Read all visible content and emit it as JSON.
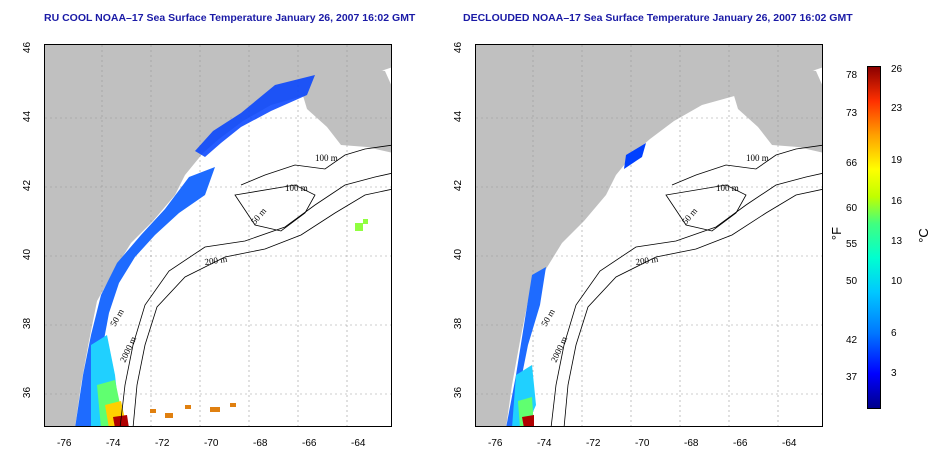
{
  "titles": {
    "left": "RU COOL NOAA–17 Sea Surface Temperature January 26, 2007 16:02 GMT",
    "right": "DECLOUDED NOAA–17 Sea Surface Temperature January 26, 2007 16:02 GMT"
  },
  "axes": {
    "x_ticks": [
      "-76",
      "-74",
      "-72",
      "-70",
      "-68",
      "-66",
      "-64"
    ],
    "y_ticks": [
      "36",
      "38",
      "40",
      "42",
      "44",
      "46"
    ]
  },
  "contour_labels": [
    "100 m",
    "100 m",
    "50 m",
    "200 m",
    "50 m",
    "2000 m"
  ],
  "colorbar": {
    "fahrenheit_ticks": [
      "78",
      "73",
      "66",
      "60",
      "55",
      "50",
      "42",
      "37"
    ],
    "celsius_ticks": [
      "26",
      "23",
      "19",
      "16",
      "13",
      "10",
      "6",
      "3"
    ],
    "fahrenheit_unit": "°F",
    "celsius_unit": "°C"
  },
  "colors": {
    "land": "#c0c0c0",
    "title": "#1a1aa6",
    "cold": "#0000ff",
    "warm": "#8b0000"
  }
}
